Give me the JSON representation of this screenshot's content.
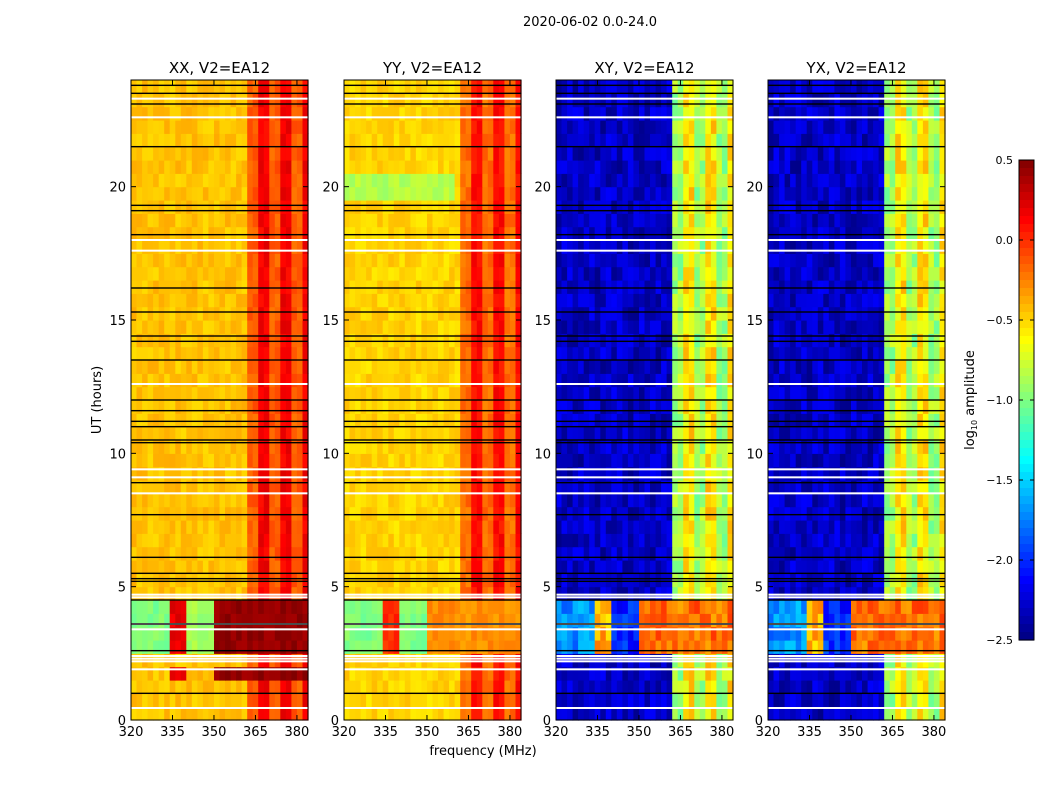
{
  "chart_data": {
    "type": "heatmap",
    "title": "2020-06-02 0.0-24.0",
    "xlabel": "frequency (MHz)",
    "ylabel": "UT (hours)",
    "xlim": [
      320,
      384
    ],
    "ylim": [
      0,
      24
    ],
    "xticks": [
      320,
      335,
      350,
      365,
      380
    ],
    "yticks": [
      0,
      5,
      10,
      15,
      20
    ],
    "colorbar": {
      "label_prefix": "log",
      "label_sub": "10",
      "label_suffix": " amplitude",
      "range": [
        -2.5,
        0.5
      ],
      "ticks": [
        "0.5",
        "0.0",
        "−0.5",
        "−1.0",
        "−1.5",
        "−2.0",
        "−2.5"
      ],
      "tick_values": [
        0.5,
        0.0,
        -0.5,
        -1.0,
        -1.5,
        -2.0,
        -2.5
      ],
      "colormap": "jet"
    },
    "panels": [
      {
        "title": "XX, V2=EA12",
        "kind": "parallel",
        "base": -0.45,
        "band": [
          -0.15,
          0.15
        ],
        "rfi": [
          -1.0,
          0.2,
          -0.9,
          0.45
        ],
        "extra_rfi_hours": [
          1.5,
          2.0
        ]
      },
      {
        "title": "YY, V2=EA12",
        "kind": "parallel",
        "base": -0.5,
        "band": [
          -0.2,
          0.1
        ],
        "rfi": [
          -1.0,
          0.0,
          -1.0,
          -0.3
        ],
        "green_hours": [
          19.3,
          20.6
        ]
      },
      {
        "title": "XY, V2=EA12",
        "kind": "cross",
        "base": -2.3,
        "band": [
          -0.9,
          -0.55
        ],
        "rfi": [
          -1.7,
          -0.4,
          -2.0,
          -0.2
        ]
      },
      {
        "title": "YX, V2=EA12",
        "kind": "cross",
        "base": -2.3,
        "band": [
          -0.9,
          -0.55
        ],
        "rfi": [
          -1.7,
          -0.4,
          -2.0,
          -0.2
        ]
      }
    ],
    "band_start_mhz": 362,
    "rfi_hours": [
      2.6,
      4.5
    ],
    "flagged_hours": [
      2.2,
      2.3,
      2.4,
      0.45,
      1.9,
      3.4,
      3.6,
      4.6,
      4.7,
      8.5,
      9.1,
      9.4,
      12.6,
      17.6,
      18.0,
      22.6,
      23.3
    ],
    "black_line_hours": [
      1.0,
      2.6,
      3.6,
      4.5,
      5.2,
      5.3,
      5.5,
      6.1,
      7.7,
      8.9,
      10.4,
      10.5,
      11.0,
      11.2,
      11.6,
      12.0,
      13.5,
      14.2,
      14.4,
      15.3,
      16.2,
      18.2,
      19.1,
      19.3,
      21.5,
      23.1,
      23.5,
      23.8
    ]
  }
}
